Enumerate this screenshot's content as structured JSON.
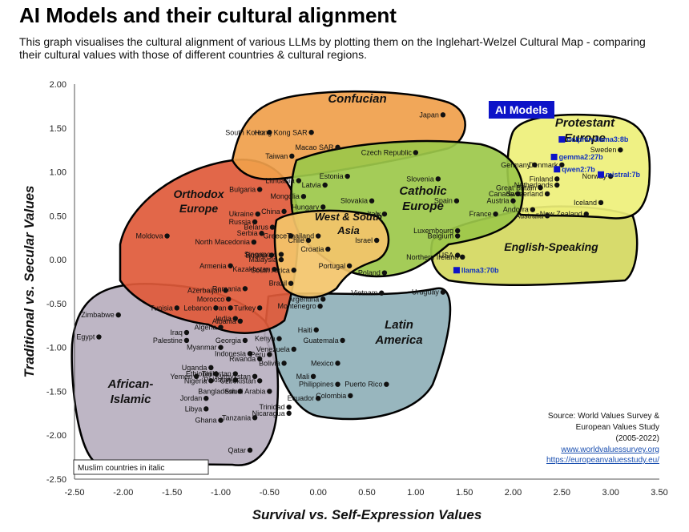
{
  "title": "AI Models and their cultural alignment",
  "subtitle": "This graph visualises the cultural alignment of various LLMs by plotting them on the Inglehart-Welzel Cultural Map - comparing their cultural values with those of different countries & cultural regions.",
  "chart_data": {
    "type": "scatter",
    "xlabel": "Survival vs. Self-Expression Values",
    "ylabel": "Traditional vs. Secular Values",
    "xlim": [
      -2.5,
      3.5
    ],
    "ylim": [
      -2.5,
      2.0
    ],
    "xticks": [
      "-2.50",
      "-2.00",
      "-1.50",
      "-1.00",
      "-0.50",
      "0.00",
      "0.50",
      "1.00",
      "1.50",
      "2.00",
      "2.50",
      "3.00",
      "3.50"
    ],
    "yticks": [
      "2.00",
      "1.50",
      "1.00",
      "0.50",
      "0.00",
      "-0.50",
      "-1.00",
      "-1.50",
      "-2.00",
      "-2.50"
    ],
    "regions": [
      {
        "name": "Confucian",
        "color": "#f0a04b"
      },
      {
        "name": "Orthodox Europe",
        "color": "#e05a3a"
      },
      {
        "name": "Catholic Europe",
        "color": "#9cc84a"
      },
      {
        "name": "Protestant Europe",
        "color": "#eef07a"
      },
      {
        "name": "English-Speaking",
        "color": "#d4d860"
      },
      {
        "name": "West & South Asia",
        "color": "#f3c46a"
      },
      {
        "name": "Latin America",
        "color": "#8fb0b8"
      },
      {
        "name": "African-Islamic",
        "color": "#b8b0c0"
      }
    ],
    "countries": [
      {
        "name": "Japan",
        "x": 1.28,
        "y": 1.65
      },
      {
        "name": "Hong Kong SAR",
        "x": -0.07,
        "y": 1.45
      },
      {
        "name": "South Korea",
        "x": -0.5,
        "y": 1.45
      },
      {
        "name": "Macao SAR",
        "x": 0.2,
        "y": 1.28
      },
      {
        "name": "Taiwan",
        "x": -0.27,
        "y": 1.18
      },
      {
        "name": "Czech Republic",
        "x": 1.0,
        "y": 1.22
      },
      {
        "name": "Lithuania",
        "x": -0.2,
        "y": 0.9
      },
      {
        "name": "Latvia",
        "x": 0.07,
        "y": 0.85
      },
      {
        "name": "Estonia",
        "x": 0.3,
        "y": 0.95
      },
      {
        "name": "Slovenia",
        "x": 1.23,
        "y": 0.92
      },
      {
        "name": "Bulgaria",
        "x": -0.6,
        "y": 0.8
      },
      {
        "name": "Mongolia",
        "x": -0.15,
        "y": 0.72
      },
      {
        "name": "Slovakia",
        "x": 0.55,
        "y": 0.67
      },
      {
        "name": "Spain",
        "x": 1.42,
        "y": 0.67
      },
      {
        "name": "Hungary",
        "x": 0.05,
        "y": 0.6
      },
      {
        "name": "Ukraine",
        "x": -0.62,
        "y": 0.52
      },
      {
        "name": "China",
        "x": -0.35,
        "y": 0.55
      },
      {
        "name": "Italy",
        "x": 0.68,
        "y": 0.52
      },
      {
        "name": "Russia",
        "x": -0.65,
        "y": 0.43
      },
      {
        "name": "Belarus",
        "x": -0.47,
        "y": 0.37
      },
      {
        "name": "Serbia",
        "x": -0.58,
        "y": 0.3
      },
      {
        "name": "Greece",
        "x": -0.28,
        "y": 0.27
      },
      {
        "name": "North Macedonia",
        "x": -0.66,
        "y": 0.2
      },
      {
        "name": "Moldova",
        "x": -1.55,
        "y": 0.27
      },
      {
        "name": "Luxembourg",
        "x": 1.43,
        "y": 0.33
      },
      {
        "name": "Belgium",
        "x": 1.43,
        "y": 0.27
      },
      {
        "name": "Thailand",
        "x": 0.0,
        "y": 0.27
      },
      {
        "name": "Chile",
        "x": -0.1,
        "y": 0.22
      },
      {
        "name": "Israel",
        "x": 0.6,
        "y": 0.22
      },
      {
        "name": "Croatia",
        "x": 0.1,
        "y": 0.12
      },
      {
        "name": "Singapore",
        "x": -0.38,
        "y": 0.06
      },
      {
        "name": "Malaysia",
        "x": -0.38,
        "y": 0.0
      },
      {
        "name": "Bosnia",
        "x": -0.48,
        "y": 0.05
      },
      {
        "name": "Armenia",
        "x": -0.9,
        "y": -0.07
      },
      {
        "name": "Kazakhstan",
        "x": -0.45,
        "y": -0.11
      },
      {
        "name": "South Africa",
        "x": -0.25,
        "y": -0.12
      },
      {
        "name": "Portugal",
        "x": 0.32,
        "y": -0.07
      },
      {
        "name": "Poland",
        "x": 0.68,
        "y": -0.15
      },
      {
        "name": "Brazil",
        "x": -0.28,
        "y": -0.27
      },
      {
        "name": "Azerbaijan",
        "x": -0.95,
        "y": -0.35
      },
      {
        "name": "Romania",
        "x": -0.75,
        "y": -0.33
      },
      {
        "name": "Vietnam",
        "x": 0.65,
        "y": -0.38
      },
      {
        "name": "Uruguay",
        "x": 1.28,
        "y": -0.37
      },
      {
        "name": "Morocco",
        "x": -0.92,
        "y": -0.45
      },
      {
        "name": "Turkey",
        "x": -0.6,
        "y": -0.55
      },
      {
        "name": "Argentina",
        "x": 0.05,
        "y": -0.45
      },
      {
        "name": "Montenegro",
        "x": 0.02,
        "y": -0.53
      },
      {
        "name": "Tunisia",
        "x": -1.45,
        "y": -0.55
      },
      {
        "name": "Lebanon",
        "x": -1.05,
        "y": -0.55
      },
      {
        "name": "Iran",
        "x": -0.9,
        "y": -0.55
      },
      {
        "name": "Zimbabwe",
        "x": -2.05,
        "y": -0.63
      },
      {
        "name": "India",
        "x": -0.85,
        "y": -0.67
      },
      {
        "name": "Albania",
        "x": -0.8,
        "y": -0.7
      },
      {
        "name": "Algeria",
        "x": -1.0,
        "y": -0.77
      },
      {
        "name": "Haiti",
        "x": -0.02,
        "y": -0.8
      },
      {
        "name": "Kenya",
        "x": -0.4,
        "y": -0.9
      },
      {
        "name": "Iraq",
        "x": -1.35,
        "y": -0.83
      },
      {
        "name": "Egypt",
        "x": -2.25,
        "y": -0.88
      },
      {
        "name": "Palestine",
        "x": -1.35,
        "y": -0.92
      },
      {
        "name": "Georgia",
        "x": -0.75,
        "y": -0.92
      },
      {
        "name": "Guatemala",
        "x": 0.25,
        "y": -0.92
      },
      {
        "name": "Myanmar",
        "x": -1.0,
        "y": -1.0
      },
      {
        "name": "Venezuela",
        "x": -0.25,
        "y": -1.02
      },
      {
        "name": "Indonesia",
        "x": -0.7,
        "y": -1.07
      },
      {
        "name": "Peru",
        "x": -0.5,
        "y": -1.08
      },
      {
        "name": "Rwanda",
        "x": -0.6,
        "y": -1.13
      },
      {
        "name": "Bolivia",
        "x": -0.35,
        "y": -1.18
      },
      {
        "name": "Mexico",
        "x": 0.2,
        "y": -1.18
      },
      {
        "name": "Uganda",
        "x": -1.1,
        "y": -1.23
      },
      {
        "name": "Ethiopia",
        "x": -1.05,
        "y": -1.3
      },
      {
        "name": "Yemen",
        "x": -1.25,
        "y": -1.33
      },
      {
        "name": "Nigeria",
        "x": -1.1,
        "y": -1.38
      },
      {
        "name": "Kyrgyzstan",
        "x": -0.65,
        "y": -1.33
      },
      {
        "name": "Uzbekistan",
        "x": -0.6,
        "y": -1.38
      },
      {
        "name": "Tajikistan",
        "x": -0.85,
        "y": -1.3
      },
      {
        "name": "Pakistan",
        "x": -0.85,
        "y": -1.37
      },
      {
        "name": "Mali",
        "x": -0.05,
        "y": -1.33
      },
      {
        "name": "Philippines",
        "x": 0.2,
        "y": -1.42
      },
      {
        "name": "Puerto Rico",
        "x": 0.7,
        "y": -1.42
      },
      {
        "name": "Bangladesh",
        "x": -0.8,
        "y": -1.5
      },
      {
        "name": "Saudi Arabia",
        "x": -0.5,
        "y": -1.5
      },
      {
        "name": "Jordan",
        "x": -1.15,
        "y": -1.58
      },
      {
        "name": "Ecuador",
        "x": 0.0,
        "y": -1.58
      },
      {
        "name": "Colombia",
        "x": 0.33,
        "y": -1.55
      },
      {
        "name": "Libya",
        "x": -1.15,
        "y": -1.7
      },
      {
        "name": "Trinidad",
        "x": -0.3,
        "y": -1.68
      },
      {
        "name": "Nicaragua",
        "x": -0.3,
        "y": -1.75
      },
      {
        "name": "Ghana",
        "x": -1.0,
        "y": -1.83
      },
      {
        "name": "Tanzania",
        "x": -0.65,
        "y": -1.8
      },
      {
        "name": "Qatar",
        "x": -0.7,
        "y": -2.17
      },
      {
        "name": "Austria",
        "x": 2.0,
        "y": 0.67
      },
      {
        "name": "Germany",
        "x": 2.22,
        "y": 1.08
      },
      {
        "name": "Great Britain",
        "x": 2.28,
        "y": 0.82
      },
      {
        "name": "Canada",
        "x": 2.05,
        "y": 0.75
      },
      {
        "name": "Denmark",
        "x": 2.5,
        "y": 1.08
      },
      {
        "name": "Sweden",
        "x": 3.1,
        "y": 1.25
      },
      {
        "name": "Finland",
        "x": 2.45,
        "y": 0.92
      },
      {
        "name": "Netherlands",
        "x": 2.45,
        "y": 0.85
      },
      {
        "name": "Norway",
        "x": 3.0,
        "y": 0.95
      },
      {
        "name": "Switzerland",
        "x": 2.35,
        "y": 0.75
      },
      {
        "name": "Iceland",
        "x": 2.9,
        "y": 0.65
      },
      {
        "name": "Andorra",
        "x": 2.2,
        "y": 0.57
      },
      {
        "name": "Australia",
        "x": 2.35,
        "y": 0.5
      },
      {
        "name": "New Zealand",
        "x": 2.75,
        "y": 0.52
      },
      {
        "name": "France",
        "x": 1.82,
        "y": 0.52
      },
      {
        "name": "Northern Ireland",
        "x": 1.48,
        "y": 0.03
      },
      {
        "name": "USA",
        "x": 1.43,
        "y": 0.05
      }
    ],
    "ai_models": [
      {
        "name": "dolphin-llama3:8b",
        "x": 2.5,
        "y": 1.37
      },
      {
        "name": "gemma2:27b",
        "x": 2.42,
        "y": 1.17
      },
      {
        "name": "qwen2:7b",
        "x": 2.45,
        "y": 1.03
      },
      {
        "name": "mistral:7b",
        "x": 2.9,
        "y": 0.97
      },
      {
        "name": "llama3:70b",
        "x": 1.42,
        "y": -0.12
      }
    ]
  },
  "labels": {
    "ai_models_box": "AI Models",
    "legend_note": "Muslim countries in italic",
    "source_line1": "Source: World Values Survey &",
    "source_line2": "European Values Study",
    "source_line3": "(2005-2022)",
    "source_link1": "www.worldvaluessurvey.org",
    "source_link2": "https://europeanvaluesstudy.eu/"
  }
}
